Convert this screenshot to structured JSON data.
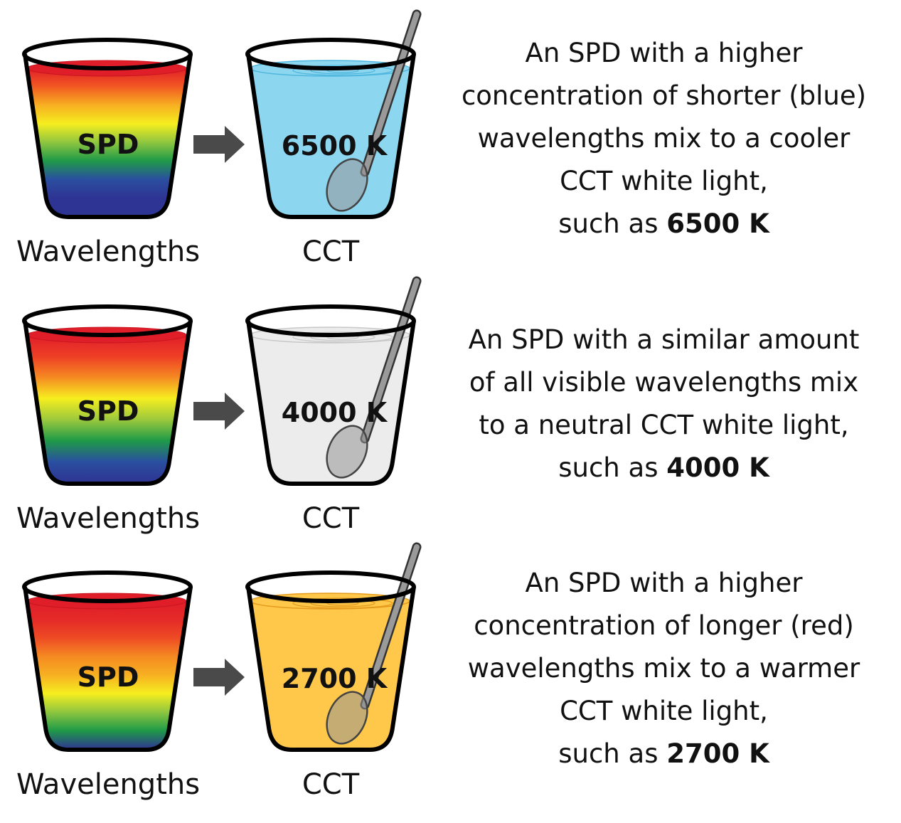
{
  "rows": [
    {
      "cup_label": "SPD",
      "left_caption": "Wavelengths",
      "result_label": "6500 K",
      "right_caption": "CCT",
      "liquid_color": "#8dd6f0",
      "ripple_color": "#4fb7dd",
      "spd_stops": [
        "#e01e2a",
        "#f25a22",
        "#f7b022",
        "#f6ee1f",
        "#8fc63f",
        "#1f9a48",
        "#2a4fa0",
        "#2e3493",
        "#2e3493"
      ],
      "desc": {
        "lines": [
          "An SPD with a higher",
          "concentration of shorter (blue)",
          "wavelengths mix to a cooler",
          "CCT white light,"
        ],
        "lead": "such as ",
        "value": "6500 K"
      }
    },
    {
      "cup_label": "SPD",
      "left_caption": "Wavelengths",
      "result_label": "4000 K",
      "right_caption": "CCT",
      "liquid_color": "#ececec",
      "ripple_color": "#c8c8c8",
      "spd_stops": [
        "#e01e2a",
        "#ee3e26",
        "#f58a22",
        "#f6ee1f",
        "#9cc93d",
        "#1f9a48",
        "#2a4fa0",
        "#2e3493"
      ],
      "desc": {
        "lines": [
          "An SPD with a similar amount",
          "of all visible wavelengths mix",
          "to a neutral CCT white light,"
        ],
        "lead": "such as ",
        "value": "4000 K"
      }
    },
    {
      "cup_label": "SPD",
      "left_caption": "Wavelengths",
      "result_label": "2700 K",
      "right_caption": "CCT",
      "liquid_color": "#ffc84a",
      "ripple_color": "#e59a1c",
      "spd_stops": [
        "#e01e2a",
        "#e42a28",
        "#ee4b25",
        "#f58a22",
        "#f7b022",
        "#f6ee1f",
        "#8fc63f",
        "#1f9a48",
        "#2e3493"
      ],
      "desc": {
        "lines": [
          "An SPD with a higher",
          "concentration of longer (red)",
          "wavelengths mix to a warmer",
          "CCT white light,"
        ],
        "lead": "such as ",
        "value": "2700 K"
      }
    }
  ]
}
